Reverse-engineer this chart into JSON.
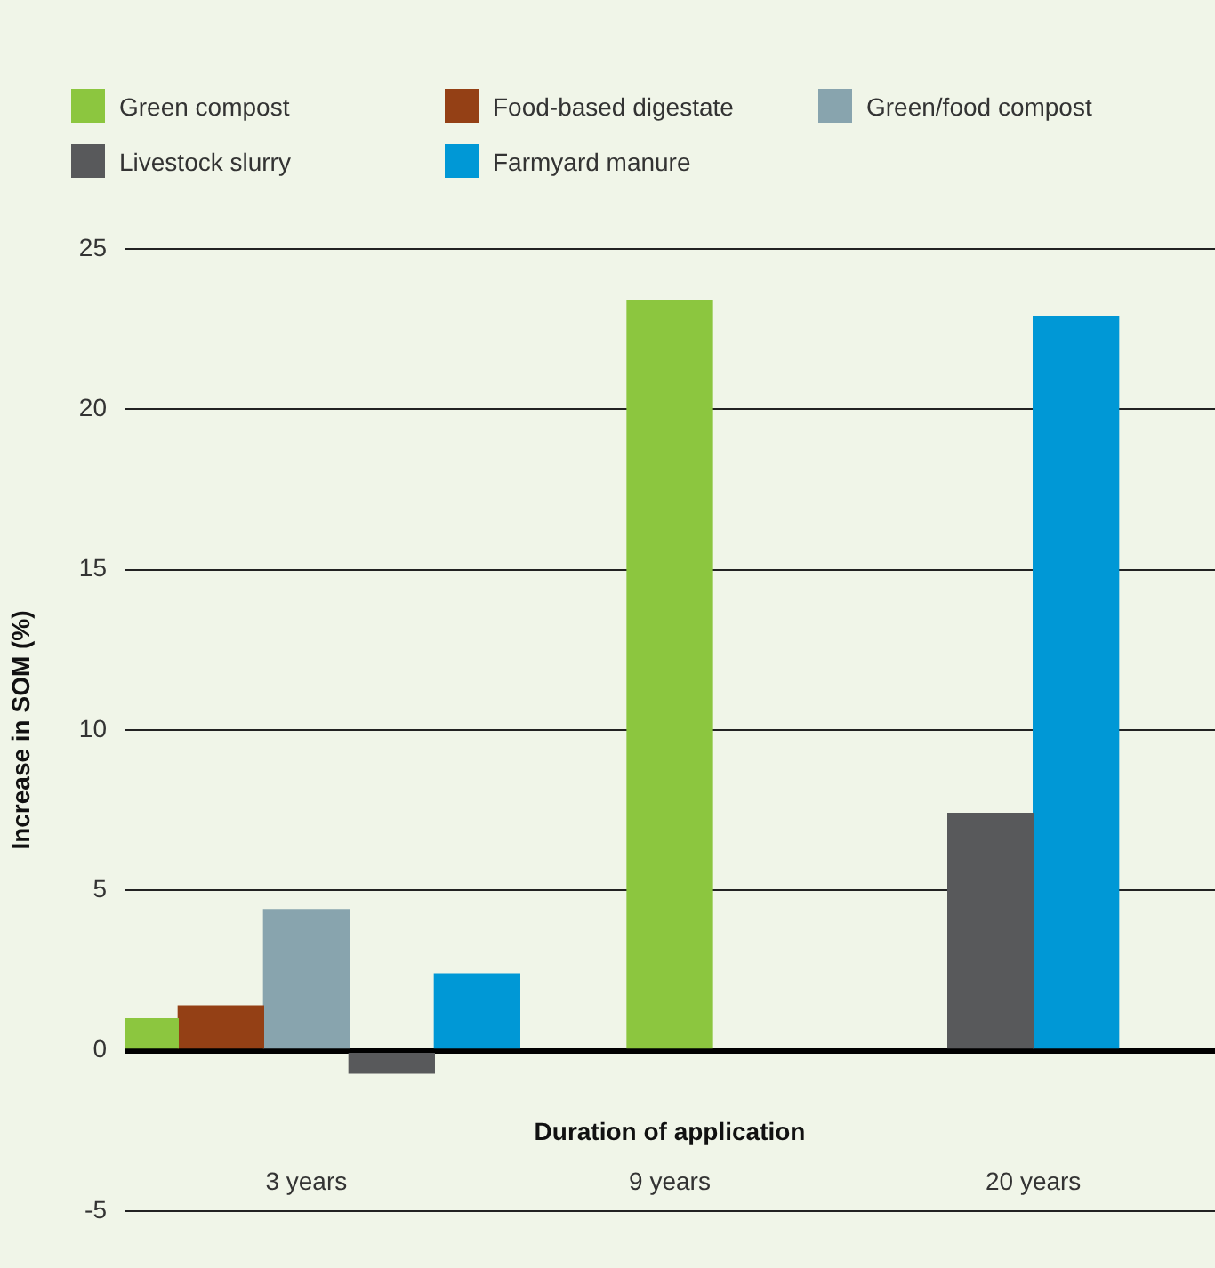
{
  "chart_data": {
    "type": "bar",
    "xlabel": "Duration of application",
    "ylabel": "Increase in SOM (%)",
    "categories": [
      "3 years",
      "9 years",
      "20 years"
    ],
    "series": [
      {
        "name": "Green compost",
        "color": "#8cc63f",
        "values": [
          1.0,
          23.4,
          null
        ]
      },
      {
        "name": "Food-based digestate",
        "color": "#944015",
        "values": [
          1.4,
          null,
          null
        ]
      },
      {
        "name": "Green/food compost",
        "color": "#88a4ae",
        "values": [
          4.4,
          null,
          null
        ]
      },
      {
        "name": "Livestock slurry",
        "color": "#58595b",
        "values": [
          -0.7,
          null,
          7.4
        ]
      },
      {
        "name": "Farmyard manure",
        "color": "#0098d6",
        "values": [
          2.4,
          null,
          22.9
        ]
      }
    ],
    "ylim": [
      -5,
      25
    ],
    "yticks": [
      -5,
      0,
      5,
      10,
      15,
      20,
      25
    ],
    "grid": "y",
    "legend": "top left"
  }
}
